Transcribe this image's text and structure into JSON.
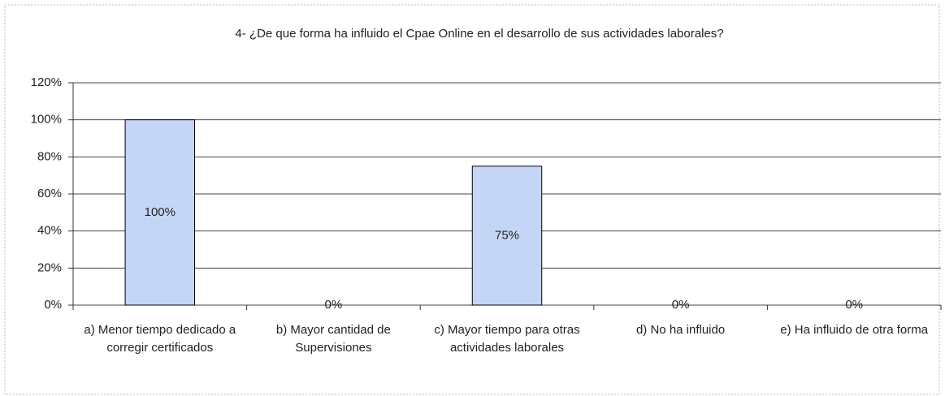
{
  "chart_data": {
    "type": "bar",
    "title": "4- ¿De que forma ha influido el Cpae Online en el desarrollo de sus actividades laborales?",
    "categories": [
      "a) Menor tiempo dedicado a corregir certificados",
      "b) Mayor cantidad de Supervisiones",
      "c) Mayor tiempo para otras actividades laborales",
      "d) No ha influido",
      "e) Ha influido de otra forma"
    ],
    "values": [
      100,
      0,
      75,
      0,
      0
    ],
    "value_labels": [
      "100%",
      "0%",
      "75%",
      "0%",
      "0%"
    ],
    "color": "#c5d5f5",
    "ylim": [
      0,
      120
    ],
    "yticks": [
      {
        "value": 0,
        "label": "0%"
      },
      {
        "value": 20,
        "label": "20%"
      },
      {
        "value": 40,
        "label": "40%"
      },
      {
        "value": 60,
        "label": "60%"
      },
      {
        "value": 80,
        "label": "80%"
      },
      {
        "value": 100,
        "label": "100%"
      },
      {
        "value": 120,
        "label": "120%"
      }
    ],
    "grid": true
  }
}
